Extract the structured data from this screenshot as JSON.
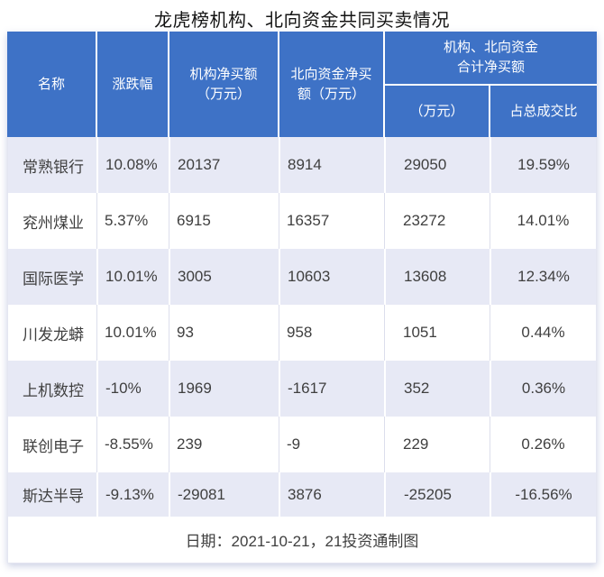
{
  "title": "龙虎榜机构、北向资金共同买卖情况",
  "colors": {
    "header_blue": "#3e72c6",
    "band_lavender": "#e7e9f5",
    "row_white": "#ffffff",
    "data_text": "#3f3f3f"
  },
  "table": {
    "headers": {
      "name": "名称",
      "change": "涨跌幅",
      "inst": "机构净买额\n（万元）",
      "north": "北向资金净买\n额（万元）",
      "combined": "机构、北向资金\n合计净买额",
      "combined_wan": "（万元）",
      "combined_ratio": "占总成交比"
    },
    "rows": [
      {
        "name": "常熟银行",
        "change": "10.08%",
        "inst": "20137",
        "north": "8914",
        "total": "29050",
        "ratio": "19.59%"
      },
      {
        "name": "兖州煤业",
        "change": "5.37%",
        "inst": "6915",
        "north": "16357",
        "total": "23272",
        "ratio": "14.01%"
      },
      {
        "name": "国际医学",
        "change": "10.01%",
        "inst": "3005",
        "north": "10603",
        "total": "13608",
        "ratio": "12.34%"
      },
      {
        "name": "川发龙蟒",
        "change": "10.01%",
        "inst": "93",
        "north": "958",
        "total": "1051",
        "ratio": "0.44%"
      },
      {
        "name": "上机数控",
        "change": "-10%",
        "inst": "1969",
        "north": "-1617",
        "total": "352",
        "ratio": "0.36%"
      },
      {
        "name": "联创电子",
        "change": "-8.55%",
        "inst": "239",
        "north": "-9",
        "total": "229",
        "ratio": "0.26%"
      },
      {
        "name": "斯达半导",
        "change": "-9.13%",
        "inst": "-29081",
        "north": "3876",
        "total": "-25205",
        "ratio": "-16.56%"
      }
    ]
  },
  "footer": "日期：2021-10-21，21投资通制图",
  "chart_data": {
    "type": "table",
    "title": "龙虎榜机构、北向资金共同买卖情况",
    "columns": [
      "名称",
      "涨跌幅",
      "机构净买额（万元）",
      "北向资金净买额（万元）",
      "机构、北向资金合计净买额（万元）",
      "机构、北向资金合计净买额占总成交比"
    ],
    "rows": [
      [
        "常熟银行",
        "10.08%",
        20137,
        8914,
        29050,
        "19.59%"
      ],
      [
        "兖州煤业",
        "5.37%",
        6915,
        16357,
        23272,
        "14.01%"
      ],
      [
        "国际医学",
        "10.01%",
        3005,
        10603,
        13608,
        "12.34%"
      ],
      [
        "川发龙蟒",
        "10.01%",
        93,
        958,
        1051,
        "0.44%"
      ],
      [
        "上机数控",
        "-10%",
        1969,
        -1617,
        352,
        "0.36%"
      ],
      [
        "联创电子",
        "-8.55%",
        239,
        -9,
        229,
        "0.26%"
      ],
      [
        "斯达半导",
        "-9.13%",
        -29081,
        3876,
        -25205,
        "-16.56%"
      ]
    ],
    "note": "日期：2021-10-21，21投资通制图",
    "layout": {
      "banded_rows": true,
      "header_color": "#3e72c6",
      "band_color": "#e7e9f5"
    }
  }
}
